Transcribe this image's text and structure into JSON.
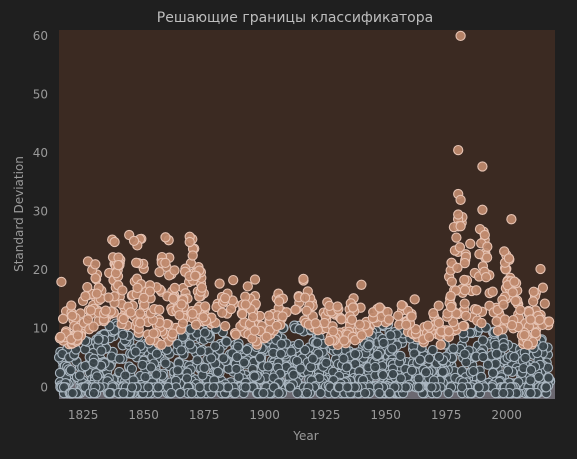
{
  "chart_data": {
    "type": "scatter",
    "title": "Решающие границы классификатора",
    "xlabel": "Year",
    "ylabel": "Standard Deviation",
    "xlim": [
      1815,
      2020
    ],
    "ylim": [
      -2,
      61
    ],
    "x_ticks": [
      1825,
      1850,
      1875,
      1900,
      1925,
      1950,
      1975,
      2000
    ],
    "y_ticks": [
      0,
      10,
      20,
      30,
      40,
      50,
      60
    ],
    "grid": false,
    "legend": "none",
    "decision_regions": [
      {
        "class": "high",
        "color": "#3b2a22",
        "y_range": [
          0,
          61
        ]
      },
      {
        "class": "low",
        "color": "#6b6870",
        "y_range": [
          -2,
          1.6
        ]
      }
    ],
    "classes": [
      {
        "name": "high",
        "color": "#c08a6e",
        "edge": "#e6c3b3"
      },
      {
        "name": "low",
        "color": "#3a444a",
        "edge": "#aab6c0"
      }
    ],
    "series": [
      {
        "class": "high",
        "points": [
          [
            1981,
            60
          ],
          [
            1980,
            40.5
          ],
          [
            1980,
            33
          ],
          [
            1981,
            32
          ],
          [
            1980,
            29.5
          ],
          [
            1981,
            27.5
          ],
          [
            1989,
            27
          ],
          [
            1991,
            26
          ],
          [
            1990,
            37.7
          ],
          [
            1990,
            30.3
          ],
          [
            2002,
            28.7
          ],
          [
            1985,
            24.5
          ],
          [
            1992,
            24
          ],
          [
            1999,
            23.2
          ],
          [
            2001,
            22
          ],
          [
            2014,
            20.2
          ],
          [
            1844,
            26
          ],
          [
            1846,
            25
          ],
          [
            1859,
            25.6
          ],
          [
            1869,
            25.7
          ],
          [
            1869,
            24.8
          ],
          [
            1837,
            25.2
          ],
          [
            1838,
            24.8
          ],
          [
            1816,
            18
          ],
          [
            1827,
            21.5
          ],
          [
            1830,
            21
          ],
          [
            1887,
            18.3
          ],
          [
            1896,
            18.4
          ],
          [
            1916,
            18.5
          ],
          [
            1940,
            17.5
          ],
          [
            1962,
            15
          ],
          [
            1972,
            11
          ],
          [
            2015,
            17
          ]
        ]
      }
    ]
  }
}
